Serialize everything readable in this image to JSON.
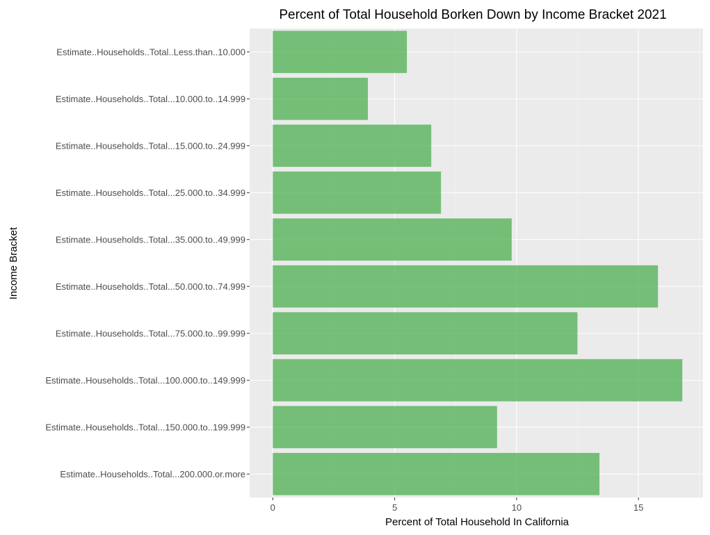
{
  "chart_data": {
    "type": "bar",
    "orientation": "horizontal",
    "title": "Percent of Total Household Borken Down by Income Bracket 2021",
    "xlabel": "Percent of Total Household In California",
    "ylabel": "Income Bracket",
    "categories": [
      "Estimate..Households..Total..Less.than..10.000",
      "Estimate..Households..Total...10.000.to..14.999",
      "Estimate..Households..Total...15.000.to..24.999",
      "Estimate..Households..Total...25.000.to..34.999",
      "Estimate..Households..Total...35.000.to..49.999",
      "Estimate..Households..Total...50.000.to..74.999",
      "Estimate..Households..Total...75.000.to..99.999",
      "Estimate..Households..Total...100.000.to..149.999",
      "Estimate..Households..Total...150.000.to..199.999",
      "Estimate..Households..Total...200.000.or.more"
    ],
    "values": [
      5.5,
      3.9,
      6.5,
      6.9,
      9.8,
      15.8,
      12.5,
      16.8,
      9.2,
      13.4
    ],
    "xlim": [
      -0.95,
      17.65
    ],
    "xticks": [
      0,
      5,
      10,
      15
    ],
    "xtick_labels": [
      "0",
      "5",
      "10",
      "15"
    ],
    "grid": true,
    "legend": "none",
    "colors": {
      "bar": "#4CAF50",
      "panel_background": "#EBEBEB",
      "grid": "#FFFFFF"
    }
  }
}
